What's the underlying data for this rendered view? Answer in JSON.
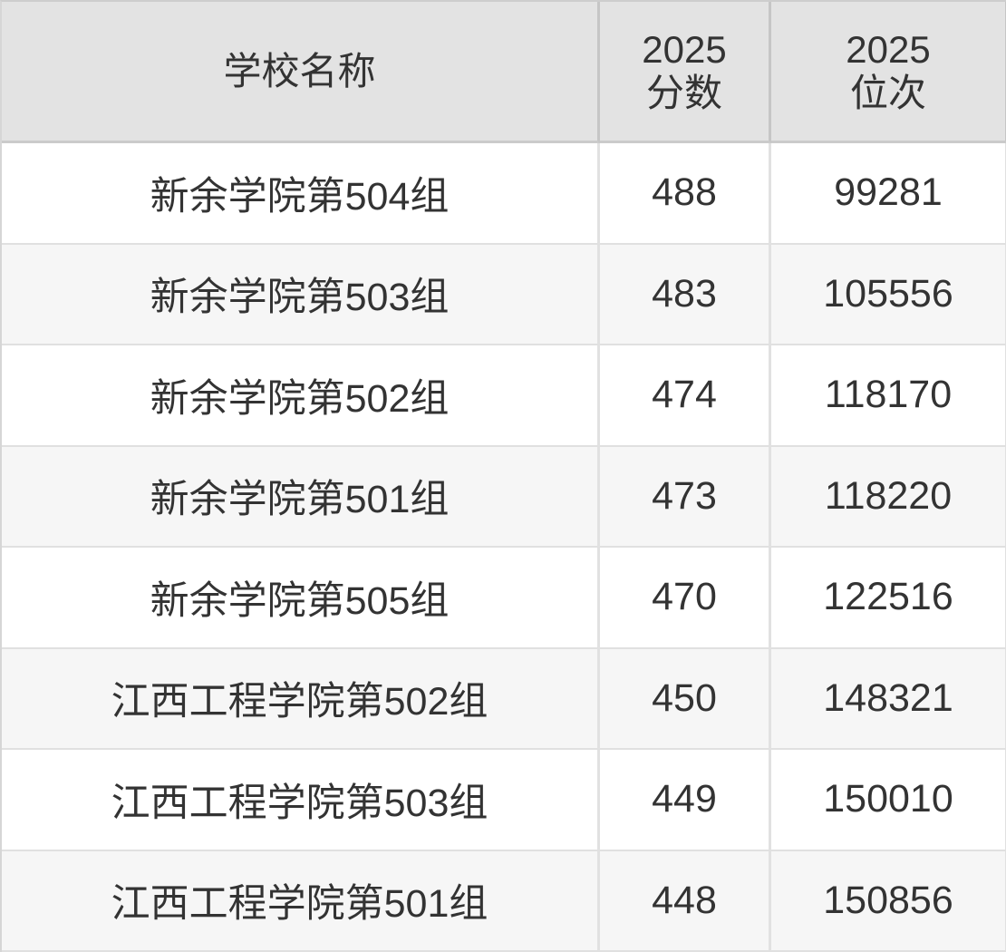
{
  "table": {
    "headers": [
      {
        "label": "学校名称"
      },
      {
        "label": "2025\n分数"
      },
      {
        "label": "2025\n位次"
      }
    ],
    "rows": [
      {
        "school": "新余学院第504组",
        "score": "488",
        "rank": "99281"
      },
      {
        "school": "新余学院第503组",
        "score": "483",
        "rank": "105556"
      },
      {
        "school": "新余学院第502组",
        "score": "474",
        "rank": "118170"
      },
      {
        "school": "新余学院第501组",
        "score": "473",
        "rank": "118220"
      },
      {
        "school": "新余学院第505组",
        "score": "470",
        "rank": "122516"
      },
      {
        "school": "江西工程学院第502组",
        "score": "450",
        "rank": "148321"
      },
      {
        "school": "江西工程学院第503组",
        "score": "449",
        "rank": "150010"
      },
      {
        "school": "江西工程学院第501组",
        "score": "448",
        "rank": "150856"
      }
    ],
    "colors": {
      "header_bg": "#e3e3e3",
      "row_alt_bg": "#f6f6f6",
      "body_border": "#e1e1e1",
      "header_border": "#c6c6c6",
      "text": "#333333"
    }
  },
  "chart_data": {
    "type": "table",
    "title": "",
    "columns": [
      "学校名称",
      "2025 分数",
      "2025 位次"
    ],
    "rows": [
      [
        "新余学院第504组",
        488,
        99281
      ],
      [
        "新余学院第503组",
        483,
        105556
      ],
      [
        "新余学院第502组",
        474,
        118170
      ],
      [
        "新余学院第501组",
        473,
        118220
      ],
      [
        "新余学院第505组",
        470,
        122516
      ],
      [
        "江西工程学院第502组",
        450,
        148321
      ],
      [
        "江西工程学院第503组",
        449,
        150010
      ],
      [
        "江西工程学院第501组",
        448,
        150856
      ]
    ],
    "layout_hints": {
      "header_background": "#e3e3e3",
      "zebra_striping": true,
      "all_cells_centered": true
    }
  }
}
